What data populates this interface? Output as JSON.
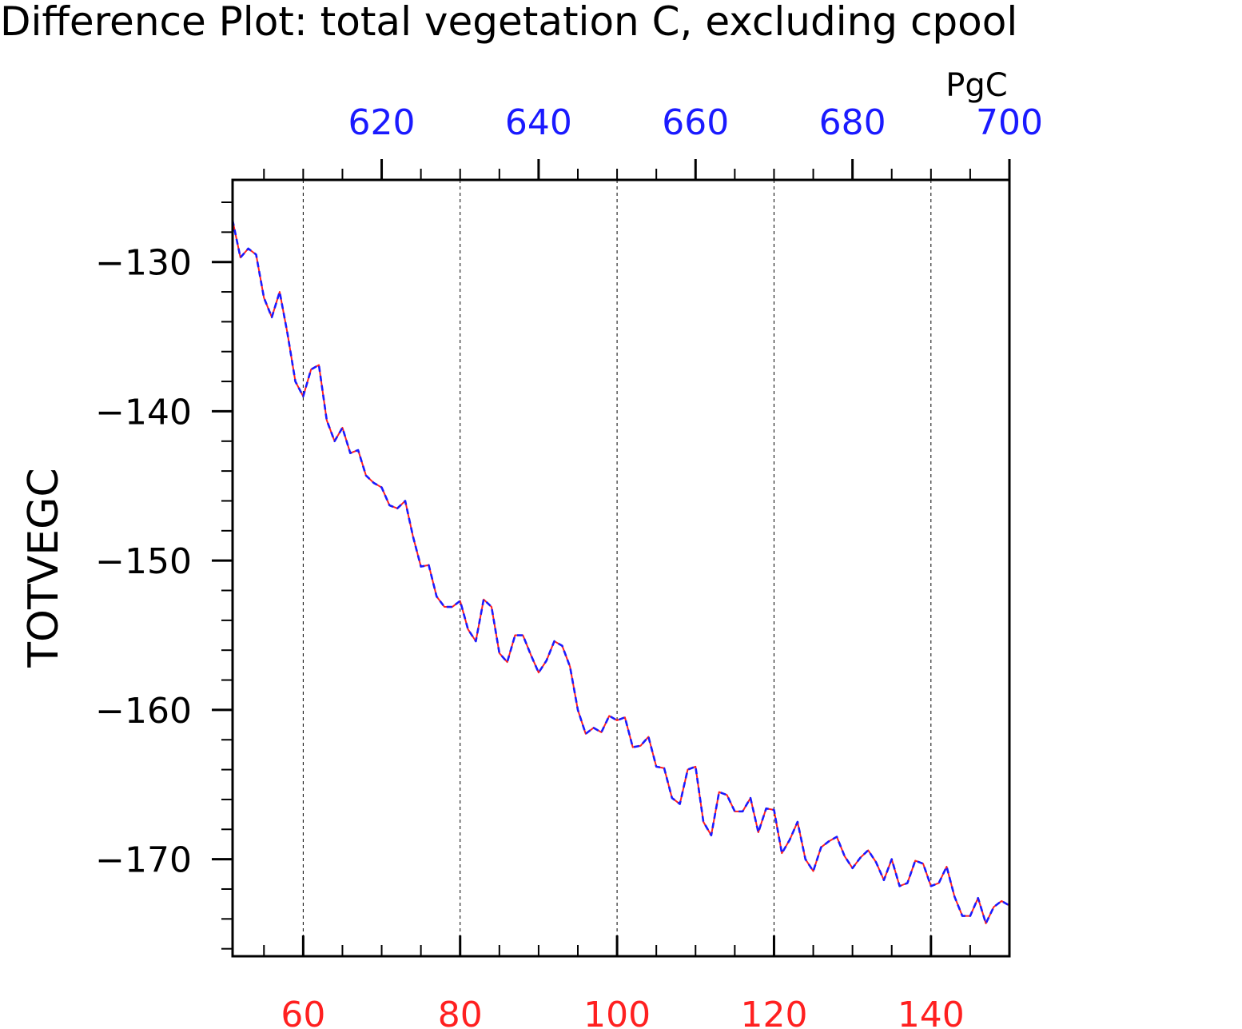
{
  "chart_data": {
    "type": "line",
    "title": "Difference Plot: total vegetation C, excluding cpool",
    "ylabel": "TOTVEGC",
    "top_axis_units": "PgC",
    "xlim": [
      51,
      150
    ],
    "ylim": [
      -176.5,
      -124.5
    ],
    "x_ticks": [
      60,
      80,
      100,
      120,
      140
    ],
    "top_axis": {
      "ticks": [
        620,
        640,
        660,
        680,
        700
      ],
      "xlim": [
        601,
        700
      ],
      "tick_color": "#1a1aff"
    },
    "y_ticks": [
      -130,
      -140,
      -150,
      -160,
      -170
    ],
    "bottom_tick_color": "#ff2020",
    "grid": "vertical dashed at major bottom ticks",
    "legend": "none",
    "x": [
      51,
      52,
      53,
      54,
      55,
      56,
      57,
      58,
      59,
      60,
      61,
      62,
      63,
      64,
      65,
      66,
      67,
      68,
      69,
      70,
      71,
      72,
      73,
      74,
      75,
      76,
      77,
      78,
      79,
      80,
      81,
      82,
      83,
      84,
      85,
      86,
      87,
      88,
      89,
      90,
      91,
      92,
      93,
      94,
      95,
      96,
      97,
      98,
      99,
      100,
      101,
      102,
      103,
      104,
      105,
      106,
      107,
      108,
      109,
      110,
      111,
      112,
      113,
      114,
      115,
      116,
      117,
      118,
      119,
      120,
      121,
      122,
      123,
      124,
      125,
      126,
      127,
      128,
      129,
      130,
      131,
      132,
      133,
      134,
      135,
      136,
      137,
      138,
      139,
      140,
      141,
      142,
      143,
      144,
      145,
      146,
      147,
      148,
      149,
      150
    ],
    "series": [
      {
        "color": "#ff2020",
        "style": "solid",
        "values": [
          -127.2,
          -129.7,
          -129.1,
          -129.5,
          -132.4,
          -133.7,
          -132.0,
          -134.8,
          -138.0,
          -139.0,
          -137.2,
          -136.9,
          -140.6,
          -142.0,
          -141.1,
          -142.8,
          -142.6,
          -144.3,
          -144.8,
          -145.1,
          -146.3,
          -146.5,
          -146.0,
          -148.4,
          -150.4,
          -150.3,
          -152.4,
          -153.1,
          -153.1,
          -152.7,
          -154.6,
          -155.4,
          -152.6,
          -153.1,
          -156.2,
          -156.8,
          -155.0,
          -155.0,
          -156.3,
          -157.5,
          -156.7,
          -155.4,
          -155.7,
          -157.1,
          -160.0,
          -161.6,
          -161.2,
          -161.5,
          -160.4,
          -160.7,
          -160.5,
          -162.5,
          -162.4,
          -161.8,
          -163.8,
          -163.9,
          -165.9,
          -166.3,
          -164.0,
          -163.8,
          -167.5,
          -168.4,
          -165.5,
          -165.7,
          -166.8,
          -166.8,
          -165.9,
          -168.2,
          -166.6,
          -166.7,
          -169.6,
          -168.7,
          -167.5,
          -170.0,
          -170.8,
          -169.2,
          -168.8,
          -168.5,
          -169.8,
          -170.6,
          -169.9,
          -169.4,
          -170.2,
          -171.4,
          -170.0,
          -171.8,
          -171.6,
          -170.1,
          -170.3,
          -171.8,
          -171.6,
          -170.5,
          -172.5,
          -173.8,
          -173.8,
          -172.6,
          -174.3,
          -173.2,
          -172.8,
          -173.1
        ]
      },
      {
        "color": "#1a1aff",
        "style": "dashed",
        "values": [
          -127.2,
          -129.7,
          -129.1,
          -129.5,
          -132.4,
          -133.7,
          -132.0,
          -134.8,
          -138.0,
          -139.0,
          -137.2,
          -136.9,
          -140.6,
          -142.0,
          -141.1,
          -142.8,
          -142.6,
          -144.3,
          -144.8,
          -145.1,
          -146.3,
          -146.5,
          -146.0,
          -148.4,
          -150.4,
          -150.3,
          -152.4,
          -153.1,
          -153.1,
          -152.7,
          -154.6,
          -155.4,
          -152.6,
          -153.1,
          -156.2,
          -156.8,
          -155.0,
          -155.0,
          -156.3,
          -157.5,
          -156.7,
          -155.4,
          -155.7,
          -157.1,
          -160.0,
          -161.6,
          -161.2,
          -161.5,
          -160.4,
          -160.7,
          -160.5,
          -162.5,
          -162.4,
          -161.8,
          -163.8,
          -163.9,
          -165.9,
          -166.3,
          -164.0,
          -163.8,
          -167.5,
          -168.4,
          -165.5,
          -165.7,
          -166.8,
          -166.8,
          -165.9,
          -168.2,
          -166.6,
          -166.7,
          -169.6,
          -168.7,
          -167.5,
          -170.0,
          -170.8,
          -169.2,
          -168.8,
          -168.5,
          -169.8,
          -170.6,
          -169.9,
          -169.4,
          -170.2,
          -171.4,
          -170.0,
          -171.8,
          -171.6,
          -170.1,
          -170.3,
          -171.8,
          -171.6,
          -170.5,
          -172.5,
          -173.8,
          -173.8,
          -172.6,
          -174.3,
          -173.2,
          -172.8,
          -173.1
        ]
      }
    ]
  }
}
